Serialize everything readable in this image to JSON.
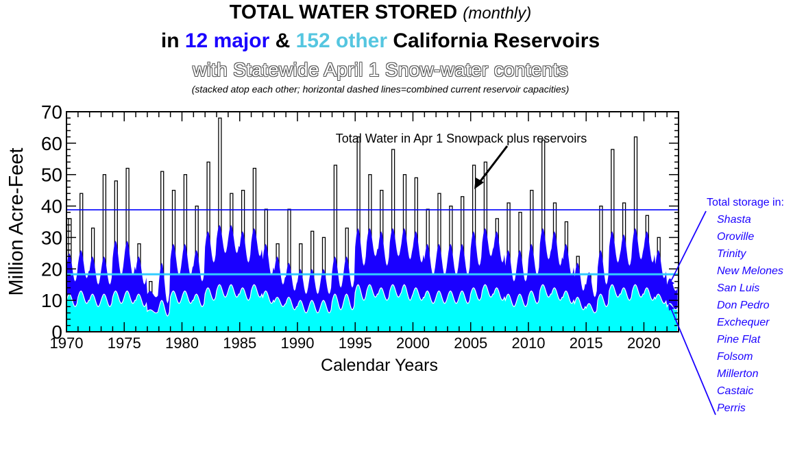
{
  "title": {
    "main": "TOTAL WATER STORED",
    "main_suffix": "(monthly)",
    "line2_prefix": "in ",
    "line2_major": "12 major",
    "line2_mid": " & ",
    "line2_other": "152 other",
    "line2_suffix": " California Reservoirs",
    "line3": "with Statewide April 1 Snow-water contents",
    "line4": "(stacked atop each other; horizontal dashed lines=combined current reservoir capacities)"
  },
  "legend": {
    "heading": "Total storage in:",
    "reservoirs": [
      "Shasta",
      "Oroville",
      "Trinity",
      "New Melones",
      "San Luis",
      "Don Pedro",
      "Exchequer",
      "Pine Flat",
      "Folsom",
      "Millerton",
      "Castaic",
      "Perris"
    ]
  },
  "colors": {
    "major": "#1a00ff",
    "other": "#00ffff",
    "capacity_major": "#0000ff",
    "capacity_combined": "#33ccff"
  },
  "chart_data": {
    "type": "area",
    "xlabel": "Calendar  Years",
    "ylabel": "Million Acre-Feet",
    "xlim": [
      1970,
      2023
    ],
    "ylim": [
      0,
      70
    ],
    "xticks": [
      1970,
      1975,
      1980,
      1985,
      1990,
      1995,
      2000,
      2005,
      2010,
      2015,
      2020
    ],
    "yticks": [
      0,
      10,
      20,
      30,
      40,
      50,
      60,
      70
    ],
    "annotation": "Total Water in Apr 1 Snowpack plus reservoirs",
    "capacity_lines": [
      38.8,
      18.3
    ],
    "years": [
      1970,
      1971,
      1972,
      1973,
      1974,
      1975,
      1976,
      1977,
      1978,
      1979,
      1980,
      1981,
      1982,
      1983,
      1984,
      1985,
      1986,
      1987,
      1988,
      1989,
      1990,
      1991,
      1992,
      1993,
      1994,
      1995,
      1996,
      1997,
      1998,
      1999,
      2000,
      2001,
      2002,
      2003,
      2004,
      2005,
      2006,
      2007,
      2008,
      2009,
      2010,
      2011,
      2012,
      2013,
      2014,
      2015,
      2016,
      2017,
      2018,
      2019,
      2020,
      2021,
      2022
    ],
    "series": [
      {
        "key": "other",
        "values_min": [
          8,
          9,
          8,
          8,
          9,
          9,
          8,
          6,
          5,
          9,
          9,
          8,
          10,
          11,
          11,
          10,
          11,
          9,
          8,
          7,
          6,
          6,
          6,
          7,
          7,
          10,
          11,
          10,
          11,
          10,
          10,
          9,
          9,
          9,
          9,
          10,
          11,
          10,
          8,
          8,
          9,
          11,
          10,
          9,
          7,
          6,
          8,
          11,
          10,
          11,
          10,
          9,
          7
        ],
        "values_max": [
          12,
          13,
          12,
          12,
          13,
          13,
          12,
          7,
          10,
          13,
          13,
          12,
          14,
          15,
          15,
          14,
          15,
          13,
          11,
          11,
          10,
          10,
          10,
          12,
          12,
          15,
          15,
          14,
          15,
          15,
          14,
          13,
          13,
          13,
          13,
          14,
          15,
          14,
          12,
          12,
          13,
          15,
          14,
          13,
          11,
          9,
          12,
          15,
          14,
          15,
          14,
          12,
          9
        ]
      },
      {
        "key": "major",
        "values_min": [
          16,
          17,
          15,
          15,
          18,
          18,
          15,
          11,
          9,
          18,
          18,
          16,
          22,
          25,
          25,
          22,
          24,
          18,
          15,
          13,
          12,
          12,
          12,
          14,
          14,
          21,
          24,
          21,
          24,
          23,
          22,
          18,
          18,
          18,
          18,
          21,
          24,
          22,
          16,
          16,
          18,
          23,
          21,
          18,
          13,
          11,
          15,
          22,
          21,
          23,
          22,
          17,
          13
        ],
        "values_max": [
          25,
          26,
          24,
          24,
          29,
          29,
          24,
          13,
          22,
          28,
          28,
          26,
          32,
          34,
          34,
          32,
          33,
          28,
          24,
          22,
          20,
          20,
          20,
          24,
          24,
          33,
          33,
          32,
          33,
          33,
          32,
          28,
          28,
          28,
          28,
          32,
          33,
          32,
          26,
          26,
          28,
          33,
          32,
          28,
          22,
          19,
          26,
          32,
          31,
          33,
          32,
          26,
          17
        ]
      },
      {
        "key": "snow_peak",
        "values": [
          36,
          44,
          33,
          50,
          48,
          52,
          28,
          16,
          51,
          45,
          50,
          40,
          54,
          68,
          44,
          45,
          52,
          39,
          28,
          39,
          28,
          32,
          30,
          53,
          33,
          62,
          50,
          45,
          58,
          50,
          49,
          39,
          44,
          40,
          43,
          53,
          54,
          36,
          41,
          38,
          45,
          61,
          41,
          35,
          24,
          18,
          40,
          58,
          41,
          62,
          37,
          30,
          null
        ]
      }
    ]
  }
}
